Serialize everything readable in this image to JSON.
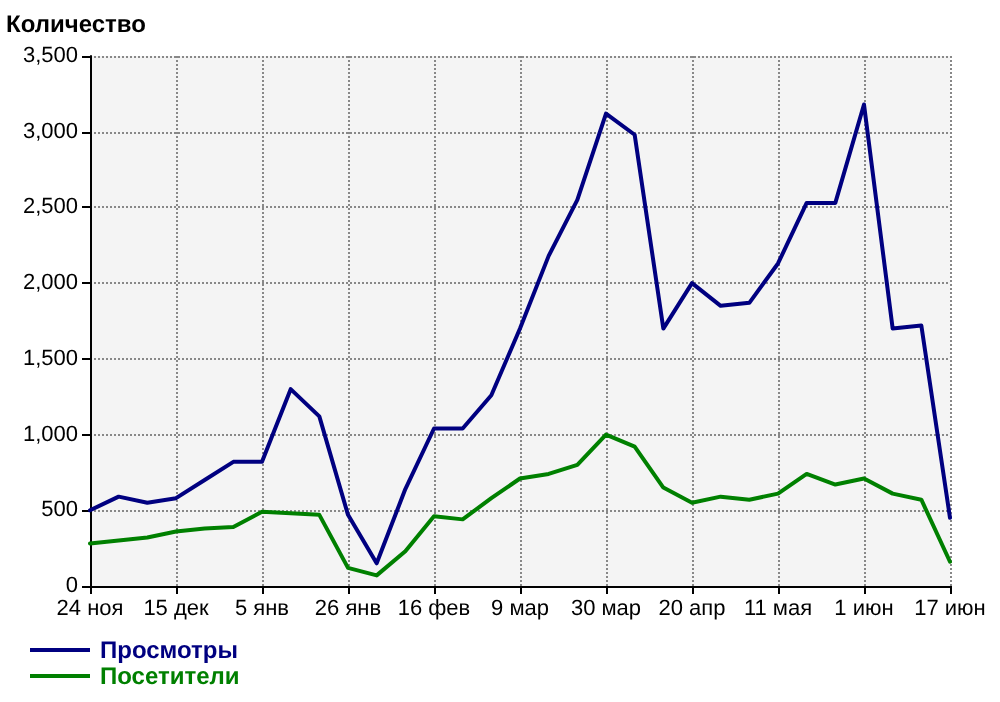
{
  "chart_data": {
    "type": "line",
    "ylabel": "Количество",
    "categories": [
      "24 ноя",
      null,
      null,
      "15 дек",
      null,
      null,
      "5 янв",
      null,
      null,
      "26 янв",
      null,
      null,
      "16 фев",
      null,
      null,
      "9 мар",
      null,
      null,
      "30 мар",
      null,
      null,
      "20 апр",
      null,
      null,
      "11 мая",
      null,
      null,
      "1 июн",
      null,
      null,
      "17 июн"
    ],
    "series": [
      {
        "name": "Просмотры",
        "color": "#000080",
        "values": [
          500,
          590,
          550,
          580,
          700,
          820,
          820,
          1300,
          1120,
          470,
          150,
          640,
          1040,
          1040,
          1260,
          1700,
          2180,
          2550,
          3120,
          2980,
          1700,
          2000,
          1850,
          1870,
          2130,
          2530,
          2530,
          3180,
          1700,
          1720,
          450
        ]
      },
      {
        "name": "Посетители",
        "color": "#008000",
        "values": [
          280,
          300,
          320,
          360,
          380,
          390,
          490,
          480,
          470,
          120,
          70,
          230,
          460,
          440,
          580,
          710,
          740,
          800,
          1000,
          920,
          650,
          550,
          590,
          570,
          610,
          740,
          670,
          710,
          610,
          570,
          160
        ]
      }
    ],
    "ylim": [
      0,
      3500
    ],
    "yticks": [
      {
        "value": 0,
        "label": "0"
      },
      {
        "value": 500,
        "label": "500"
      },
      {
        "value": 1000,
        "label": "1,000"
      },
      {
        "value": 1500,
        "label": "1,500"
      },
      {
        "value": 2000,
        "label": "2,000"
      },
      {
        "value": 2500,
        "label": "2,500"
      },
      {
        "value": 3000,
        "label": "3,000"
      },
      {
        "value": 3500,
        "label": "3,500"
      }
    ],
    "grid": true,
    "legend": "bottom left",
    "marker": "none",
    "line_style": "solid"
  }
}
